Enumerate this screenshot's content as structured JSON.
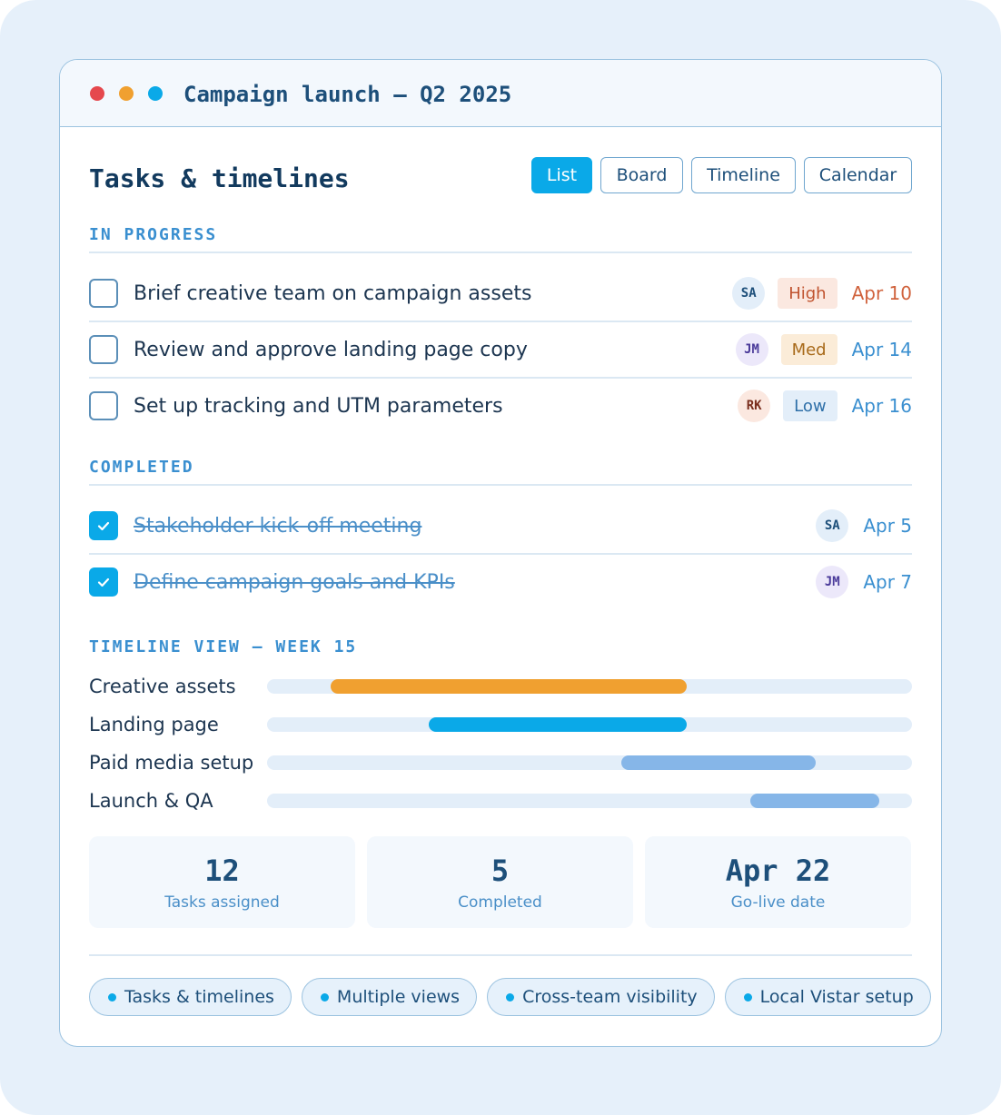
{
  "window": {
    "title": "Campaign launch — Q2 2025"
  },
  "header": {
    "title": "Tasks & timelines",
    "views": [
      "List",
      "Board",
      "Timeline",
      "Calendar"
    ],
    "active_view": "List"
  },
  "in_progress": {
    "label": "IN PROGRESS",
    "tasks": [
      {
        "title": "Brief creative team on campaign assets",
        "assignee": "SA",
        "priority": "High",
        "due": "Apr 10"
      },
      {
        "title": "Review and approve landing page copy",
        "assignee": "JM",
        "priority": "Med",
        "due": "Apr 14"
      },
      {
        "title": "Set up tracking and UTM parameters",
        "assignee": "RK",
        "priority": "Low",
        "due": "Apr 16"
      }
    ]
  },
  "completed": {
    "label": "COMPLETED",
    "tasks": [
      {
        "title": "Stakeholder kick-off meeting",
        "assignee": "SA",
        "due": "Apr 5"
      },
      {
        "title": "Define campaign goals and KPIs",
        "assignee": "JM",
        "due": "Apr 7"
      }
    ]
  },
  "timeline": {
    "label": "TIMELINE VIEW — WEEK 15",
    "rows": [
      "Creative assets",
      "Landing page",
      "Paid media setup",
      "Launch & QA"
    ]
  },
  "stats": [
    {
      "value": 12,
      "label": "Tasks assigned"
    },
    {
      "value": 5,
      "label": "Completed"
    },
    {
      "value": "Apr 22",
      "label": "Go-live date"
    }
  ],
  "tags": [
    "Tasks & timelines",
    "Multiple views",
    "Cross-team visibility",
    "Local Vistar setup"
  ]
}
